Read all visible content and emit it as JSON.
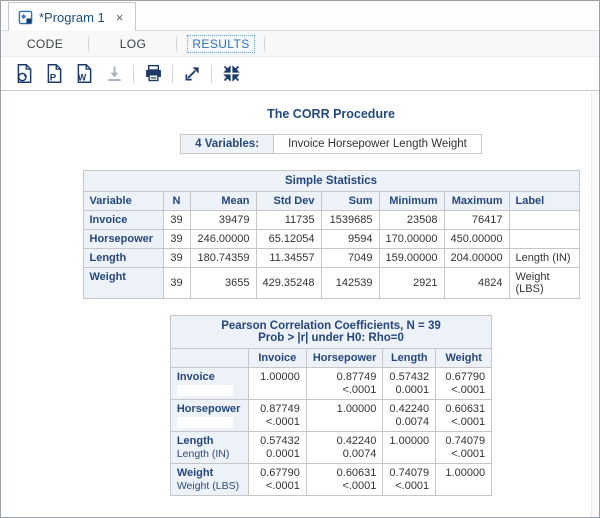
{
  "window_tab": {
    "title": "*Program 1",
    "close_label": "×"
  },
  "nav_tabs": {
    "code": "CODE",
    "log": "LOG",
    "results": "RESULTS",
    "active": "RESULTS"
  },
  "toolbar": {
    "icons": [
      "html-download-icon",
      "pdf-download-icon",
      "rtf-download-icon",
      "download-icon",
      "print-icon",
      "open-new-window-icon",
      "collapse-results-icon"
    ],
    "disabled": [
      "download-icon"
    ]
  },
  "colors": {
    "accent": "#2d6fb8",
    "heading": "#25477b",
    "header_bg": "#edf2f9",
    "border": "#c6c6c6",
    "icon_navy": "#1d3a66",
    "icon_disabled": "#a9b4bf"
  },
  "results": {
    "title": "The CORR Procedure",
    "variables_table": {
      "header": "4 Variables:",
      "value": "Invoice Horsepower Length Weight"
    },
    "simple_statistics": {
      "caption": "Simple Statistics",
      "columns": [
        "Variable",
        "N",
        "Mean",
        "Std Dev",
        "Sum",
        "Minimum",
        "Maximum",
        "Label"
      ],
      "rows": [
        [
          "Invoice",
          "39",
          "39479",
          "11735",
          "1539685",
          "23508",
          "76417",
          ""
        ],
        [
          "Horsepower",
          "39",
          "246.00000",
          "65.12054",
          "9594",
          "170.00000",
          "450.00000",
          ""
        ],
        [
          "Length",
          "39",
          "180.74359",
          "11.34557",
          "7049",
          "159.00000",
          "204.00000",
          "Length (IN)"
        ],
        [
          "Weight",
          "39",
          "3655",
          "429.35248",
          "142539",
          "2921",
          "4824",
          "Weight (LBS)"
        ]
      ]
    },
    "correlation": {
      "caption_line1": "Pearson Correlation Coefficients, N = 39",
      "caption_line2": "Prob > |r| under H0: Rho=0",
      "columns": [
        "Invoice",
        "Horsepower",
        "Length",
        "Weight"
      ],
      "rows": [
        {
          "name": "Invoice",
          "label": "",
          "cells": [
            [
              "1.00000",
              ""
            ],
            [
              "0.87749",
              "<.0001"
            ],
            [
              "0.57432",
              "0.0001"
            ],
            [
              "0.67790",
              "<.0001"
            ]
          ]
        },
        {
          "name": "Horsepower",
          "label": "",
          "cells": [
            [
              "0.87749",
              "<.0001"
            ],
            [
              "1.00000",
              ""
            ],
            [
              "0.42240",
              "0.0074"
            ],
            [
              "0.60631",
              "<.0001"
            ]
          ]
        },
        {
          "name": "Length",
          "label": "Length (IN)",
          "cells": [
            [
              "0.57432",
              "0.0001"
            ],
            [
              "0.42240",
              "0.0074"
            ],
            [
              "1.00000",
              ""
            ],
            [
              "0.74079",
              "<.0001"
            ]
          ]
        },
        {
          "name": "Weight",
          "label": "Weight (LBS)",
          "cells": [
            [
              "0.67790",
              "<.0001"
            ],
            [
              "0.60631",
              "<.0001"
            ],
            [
              "0.74079",
              "<.0001"
            ],
            [
              "1.00000",
              ""
            ]
          ]
        }
      ]
    }
  }
}
